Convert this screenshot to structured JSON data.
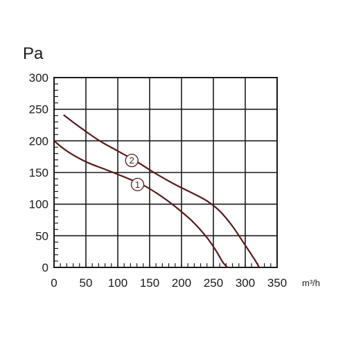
{
  "chart_data": {
    "type": "line",
    "ylabel": "Pa",
    "xlabel": "m³/h",
    "xlim": [
      0,
      350
    ],
    "ylim": [
      0,
      300
    ],
    "x_ticks": [
      "0",
      "50",
      "100",
      "150",
      "200",
      "250",
      "300",
      "350"
    ],
    "y_ticks": [
      "0",
      "50",
      "100",
      "150",
      "200",
      "250",
      "300"
    ],
    "grid": true,
    "curve_color": "#5a1a1a",
    "series": [
      {
        "name": "1",
        "x": [
          0,
          20,
          50,
          80,
          110,
          140,
          160,
          180,
          200,
          220,
          240,
          255,
          265,
          272
        ],
        "y": [
          200,
          184,
          167,
          155,
          143,
          130,
          118,
          104,
          88,
          70,
          47,
          25,
          8,
          0
        ]
      },
      {
        "name": "2",
        "x": [
          15,
          40,
          70,
          100,
          130,
          160,
          190,
          220,
          240,
          260,
          280,
          300,
          315,
          322
        ],
        "y": [
          241,
          222,
          201,
          184,
          167,
          148,
          131,
          116,
          105,
          89,
          65,
          35,
          12,
          0
        ]
      }
    ]
  }
}
